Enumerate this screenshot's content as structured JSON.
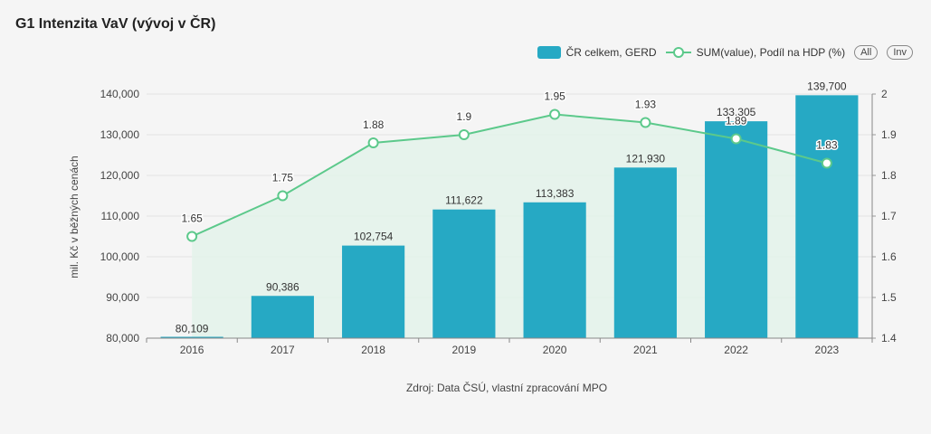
{
  "title": "G1 Intenzita VaV (vývoj v ČR)",
  "legend": {
    "bar_label": "ČR celkem, GERD",
    "line_label": "SUM(value), Podíl na HDP (%)",
    "all_button": "All",
    "inv_button": "Inv"
  },
  "source": "Zdroj: Data ČSÚ, vlastní zpracování MPO",
  "colors": {
    "bar": "#26a9c4",
    "line": "#5cc98b",
    "area": "#e3f2ea"
  },
  "chart_data": {
    "type": "bar",
    "categories": [
      "2016",
      "2017",
      "2018",
      "2019",
      "2020",
      "2021",
      "2022",
      "2023"
    ],
    "series": [
      {
        "name": "ČR celkem, GERD",
        "type": "bar",
        "axis": "left",
        "values": [
          80109,
          90386,
          102754,
          111622,
          113383,
          121930,
          133305,
          139700
        ],
        "labels": [
          "80,109",
          "90,386",
          "102,754",
          "111,622",
          "113,383",
          "121,930",
          "133,305",
          "139,700"
        ]
      },
      {
        "name": "SUM(value), Podíl na HDP (%)",
        "type": "line",
        "axis": "right",
        "values": [
          1.65,
          1.75,
          1.88,
          1.9,
          1.95,
          1.93,
          1.89,
          1.83
        ],
        "labels": [
          "1.65",
          "1.75",
          "1.88",
          "1.9",
          "1.95",
          "1.93",
          "1.89",
          "1.83"
        ]
      }
    ],
    "ylabel": "mil. Kč v běžných cenách",
    "ylim": [
      80000,
      140000
    ],
    "yticks": [
      80000,
      90000,
      100000,
      110000,
      120000,
      130000,
      140000
    ],
    "yticklabels": [
      "80,000",
      "90,000",
      "100,000",
      "110,000",
      "120,000",
      "130,000",
      "140,000"
    ],
    "y2lim": [
      1.4,
      2.0
    ],
    "y2ticks": [
      1.4,
      1.5,
      1.6,
      1.7,
      1.8,
      1.9,
      2.0
    ],
    "y2ticklabels": [
      "1.4",
      "1.5",
      "1.6",
      "1.7",
      "1.8",
      "1.9",
      "2"
    ],
    "grid": true,
    "legend_position": "top-right"
  }
}
